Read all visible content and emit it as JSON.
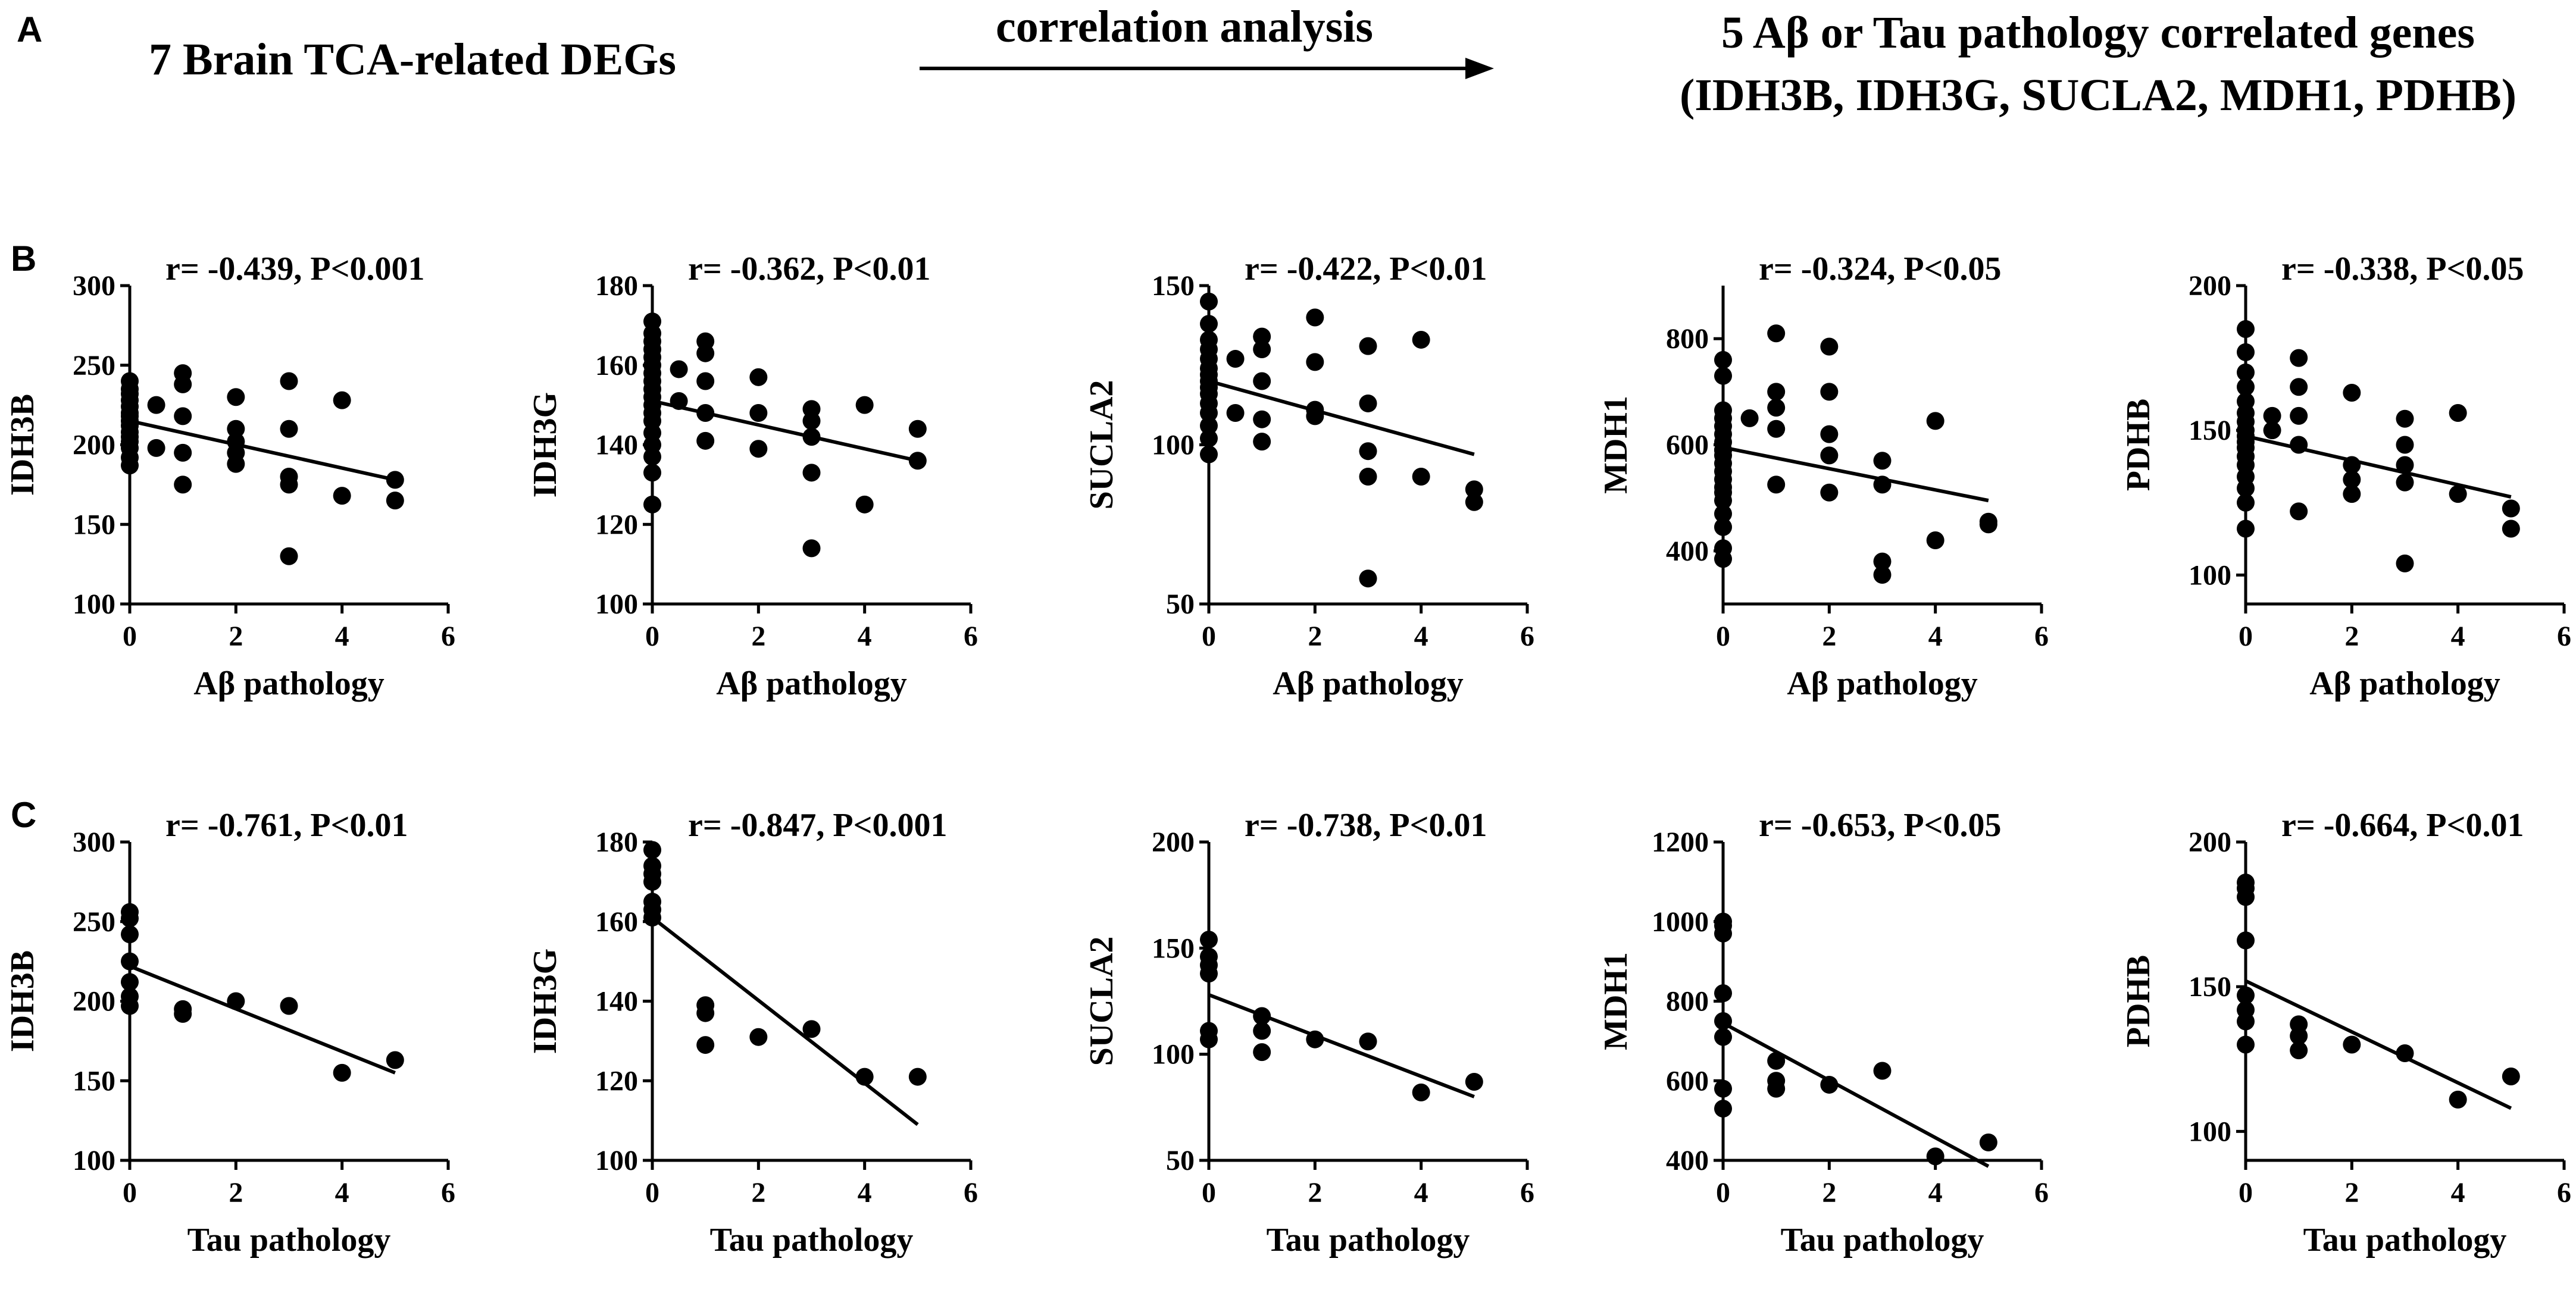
{
  "panel_labels": {
    "a": "A",
    "b": "B",
    "c": "C"
  },
  "header": {
    "left": "7 Brain TCA-related DEGs",
    "arrow": "correlation analysis",
    "right_line1": "5 Aβ or Tau pathology correlated genes",
    "right_line2": "(IDH3B, IDH3G, SUCLA2, MDH1, PDHB)"
  },
  "chart_data": [
    {
      "type": "scatter",
      "row": "B",
      "title": "r= -0.439, P<0.001",
      "xlabel": "Aβ pathology",
      "ylabel": "IDH3B",
      "xlim": [
        0,
        6
      ],
      "xticks": [
        0,
        2,
        4,
        6
      ],
      "ylim": [
        100,
        300
      ],
      "yticks": [
        100,
        150,
        200,
        250,
        300
      ],
      "fit": [
        [
          0,
          215
        ],
        [
          5,
          178
        ]
      ],
      "x": [
        0,
        0,
        0,
        0,
        0,
        0,
        0,
        0,
        0,
        0,
        0,
        0,
        0,
        0,
        0,
        0.5,
        0.5,
        1,
        1,
        1,
        1,
        1,
        2,
        2,
        2,
        2,
        2,
        3,
        3,
        3,
        3,
        3,
        4,
        4,
        5,
        5
      ],
      "y": [
        187,
        192,
        198,
        202,
        205,
        208,
        212,
        215,
        218,
        220,
        224,
        228,
        232,
        235,
        240,
        225,
        198,
        245,
        238,
        218,
        195,
        175,
        230,
        210,
        202,
        195,
        188,
        240,
        210,
        180,
        175,
        130,
        228,
        168,
        178,
        165
      ]
    },
    {
      "type": "scatter",
      "row": "B",
      "title": "r= -0.362, P<0.01",
      "xlabel": "Aβ pathology",
      "ylabel": "IDH3G",
      "xlim": [
        0,
        6
      ],
      "xticks": [
        0,
        2,
        4,
        6
      ],
      "ylim": [
        100,
        180
      ],
      "yticks": [
        100,
        120,
        140,
        160,
        180
      ],
      "fit": [
        [
          0,
          151
        ],
        [
          5,
          136
        ]
      ],
      "x": [
        0,
        0,
        0,
        0,
        0,
        0,
        0,
        0,
        0,
        0,
        0,
        0,
        0,
        0,
        0,
        0,
        0,
        0,
        0.5,
        0.5,
        1,
        1,
        1,
        1,
        1,
        2,
        2,
        2,
        3,
        3,
        3,
        3,
        3,
        4,
        4,
        5,
        5
      ],
      "y": [
        125,
        133,
        137,
        140,
        143,
        146,
        148,
        150,
        152,
        154,
        156,
        158,
        160,
        162,
        164,
        166,
        168,
        171,
        159,
        151,
        166,
        163,
        156,
        148,
        141,
        157,
        148,
        139,
        149,
        146,
        142,
        133,
        114,
        150,
        125,
        144,
        136
      ]
    },
    {
      "type": "scatter",
      "row": "B",
      "title": "r= -0.422, P<0.01",
      "xlabel": "Aβ pathology",
      "ylabel": "SUCLA2",
      "xlim": [
        0,
        6
      ],
      "xticks": [
        0,
        2,
        4,
        6
      ],
      "ylim": [
        50,
        150
      ],
      "yticks": [
        50,
        100,
        150
      ],
      "fit": [
        [
          0,
          120
        ],
        [
          5,
          97
        ]
      ],
      "x": [
        0,
        0,
        0,
        0,
        0,
        0,
        0,
        0,
        0,
        0,
        0,
        0,
        0,
        0,
        0,
        0.5,
        0.5,
        1,
        1,
        1,
        1,
        1,
        2,
        2,
        2,
        2,
        3,
        3,
        3,
        3,
        3,
        4,
        4,
        5,
        5
      ],
      "y": [
        97,
        102,
        106,
        110,
        113,
        116,
        118,
        120,
        122,
        124,
        127,
        130,
        133,
        138,
        145,
        127,
        110,
        134,
        130,
        120,
        108,
        101,
        140,
        126,
        111,
        109,
        131,
        113,
        98,
        90,
        58,
        133,
        90,
        86,
        82
      ]
    },
    {
      "type": "scatter",
      "row": "B",
      "title": "r= -0.324, P<0.05",
      "xlabel": "Aβ pathology",
      "ylabel": "MDH1",
      "xlim": [
        0,
        6
      ],
      "xticks": [
        0,
        2,
        4,
        6
      ],
      "ylim": [
        300,
        900
      ],
      "yticks": [
        400,
        600,
        800
      ],
      "fit": [
        [
          0,
          595
        ],
        [
          5,
          495
        ]
      ],
      "x": [
        0,
        0,
        0,
        0,
        0,
        0,
        0,
        0,
        0,
        0,
        0,
        0,
        0,
        0,
        0,
        0,
        0,
        0,
        0,
        0,
        0.5,
        1,
        1,
        1,
        1,
        1,
        2,
        2,
        2,
        2,
        2,
        3,
        3,
        3,
        3,
        4,
        4,
        5,
        5
      ],
      "y": [
        385,
        405,
        445,
        470,
        495,
        510,
        520,
        535,
        550,
        565,
        580,
        590,
        605,
        620,
        635,
        650,
        665,
        730,
        760,
        590,
        650,
        810,
        700,
        670,
        630,
        525,
        785,
        700,
        620,
        580,
        510,
        570,
        525,
        380,
        355,
        645,
        420,
        455,
        450
      ]
    },
    {
      "type": "scatter",
      "row": "B",
      "title": "r= -0.338, P<0.05",
      "xlabel": "Aβ pathology",
      "ylabel": "PDHB",
      "xlim": [
        0,
        6
      ],
      "xticks": [
        0,
        2,
        4,
        6
      ],
      "ylim": [
        90,
        200
      ],
      "yticks": [
        100,
        150,
        200
      ],
      "fit": [
        [
          0,
          148
        ],
        [
          5,
          127
        ]
      ],
      "x": [
        0,
        0,
        0,
        0,
        0,
        0,
        0,
        0,
        0,
        0,
        0,
        0,
        0,
        0,
        0,
        0,
        0,
        0.5,
        0.5,
        1,
        1,
        1,
        1,
        1,
        2,
        2,
        2,
        2,
        3,
        3,
        3,
        3,
        3,
        4,
        4,
        5,
        5
      ],
      "y": [
        116,
        125,
        130,
        134,
        138,
        141,
        144,
        146,
        148,
        150,
        153,
        156,
        160,
        165,
        170,
        177,
        185,
        155,
        150,
        175,
        165,
        155,
        145,
        122,
        163,
        138,
        133,
        128,
        154,
        145,
        138,
        132,
        104,
        156,
        128,
        123,
        116
      ]
    },
    {
      "type": "scatter",
      "row": "C",
      "title": "r= -0.761, P<0.01",
      "xlabel": "Tau pathology",
      "ylabel": "IDH3B",
      "xlim": [
        0,
        6
      ],
      "xticks": [
        0,
        2,
        4,
        6
      ],
      "ylim": [
        100,
        300
      ],
      "yticks": [
        100,
        150,
        200,
        250,
        300
      ],
      "fit": [
        [
          0,
          222
        ],
        [
          5,
          155
        ]
      ],
      "x": [
        0,
        0,
        0,
        0,
        0,
        0,
        0,
        1,
        1,
        2,
        3,
        4,
        5
      ],
      "y": [
        197,
        203,
        212,
        225,
        242,
        252,
        256,
        192,
        195,
        200,
        197,
        155,
        163
      ]
    },
    {
      "type": "scatter",
      "row": "C",
      "title": "r= -0.847, P<0.001",
      "xlabel": "Tau pathology",
      "ylabel": "IDH3G",
      "xlim": [
        0,
        6
      ],
      "xticks": [
        0,
        2,
        4,
        6
      ],
      "ylim": [
        100,
        180
      ],
      "yticks": [
        100,
        120,
        140,
        160,
        180
      ],
      "fit": [
        [
          0,
          161
        ],
        [
          5,
          109
        ]
      ],
      "x": [
        0,
        0,
        0,
        0,
        0,
        0,
        0,
        1,
        1,
        1,
        2,
        3,
        4,
        5
      ],
      "y": [
        161,
        163,
        165,
        170,
        172,
        174,
        178,
        139,
        137,
        129,
        131,
        133,
        121,
        121
      ]
    },
    {
      "type": "scatter",
      "row": "C",
      "title": "r= -0.738, P<0.01",
      "xlabel": "Tau pathology",
      "ylabel": "SUCLA2",
      "xlim": [
        0,
        6
      ],
      "xticks": [
        0,
        2,
        4,
        6
      ],
      "ylim": [
        50,
        200
      ],
      "yticks": [
        50,
        100,
        150,
        200
      ],
      "fit": [
        [
          0,
          128
        ],
        [
          5,
          80
        ]
      ],
      "x": [
        0,
        0,
        0,
        0,
        0,
        0,
        1,
        1,
        1,
        2,
        3,
        4,
        5
      ],
      "y": [
        107,
        111,
        138,
        142,
        146,
        154,
        118,
        111,
        101,
        107,
        106,
        82,
        87
      ]
    },
    {
      "type": "scatter",
      "row": "C",
      "title": "r= -0.653, P<0.05",
      "xlabel": "Tau pathology",
      "ylabel": "MDH1",
      "xlim": [
        0,
        6
      ],
      "xticks": [
        0,
        2,
        4,
        6
      ],
      "ylim": [
        400,
        1200
      ],
      "yticks": [
        400,
        600,
        800,
        1000,
        1200
      ],
      "fit": [
        [
          0,
          745
        ],
        [
          5,
          385
        ]
      ],
      "x": [
        0,
        0,
        0,
        0,
        0,
        0,
        0,
        0,
        1,
        1,
        1,
        2,
        3,
        4,
        5
      ],
      "y": [
        530,
        580,
        710,
        750,
        820,
        970,
        990,
        1000,
        650,
        600,
        580,
        590,
        625,
        410,
        445
      ]
    },
    {
      "type": "scatter",
      "row": "C",
      "title": "r= -0.664, P<0.01",
      "xlabel": "Tau pathology",
      "ylabel": "PDHB",
      "xlim": [
        0,
        6
      ],
      "xticks": [
        0,
        2,
        4,
        6
      ],
      "ylim": [
        90,
        200
      ],
      "yticks": [
        100,
        150,
        200
      ],
      "fit": [
        [
          0,
          152
        ],
        [
          5,
          108
        ]
      ],
      "x": [
        0,
        0,
        0,
        0,
        0,
        0,
        0,
        0,
        1,
        1,
        1,
        2,
        3,
        4,
        5
      ],
      "y": [
        130,
        138,
        142,
        147,
        166,
        181,
        184,
        186,
        137,
        133,
        128,
        130,
        127,
        111,
        119
      ]
    }
  ]
}
